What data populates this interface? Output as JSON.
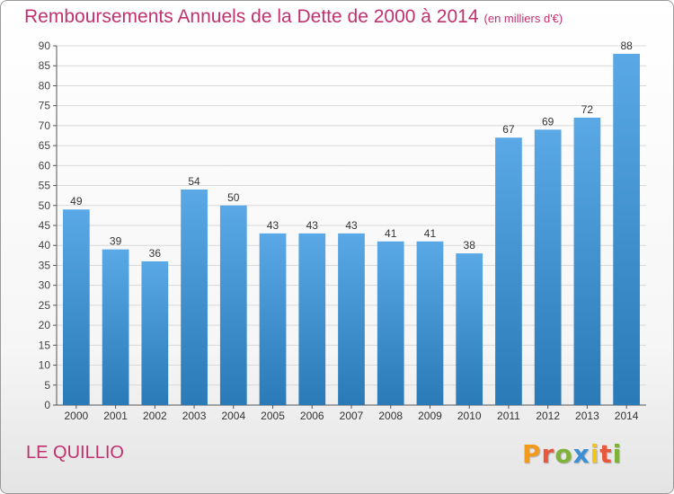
{
  "title": {
    "main": "Remboursements Annuels de la Dette de 2000 à 2014",
    "unit": "(en milliers d'€)"
  },
  "footer": {
    "city": "LE QUILLIO",
    "brand": "Proxiti"
  },
  "colors": {
    "title": "#c0316f",
    "bar_top": "#5aa8e6",
    "bar_bottom": "#2a7ab8",
    "logo_letters": [
      "#f29a1e",
      "#e8563c",
      "#7fb239",
      "#3a8fd6",
      "#f2c41e",
      "#e8563c",
      "#7fb239"
    ]
  },
  "chart_data": {
    "type": "bar",
    "categories": [
      "2000",
      "2001",
      "2002",
      "2003",
      "2004",
      "2005",
      "2006",
      "2007",
      "2008",
      "2009",
      "2010",
      "2011",
      "2012",
      "2013",
      "2014"
    ],
    "values": [
      49,
      39,
      36,
      54,
      50,
      43,
      43,
      43,
      41,
      41,
      38,
      67,
      69,
      72,
      88
    ],
    "title": "Remboursements Annuels de la Dette de 2000 à 2014",
    "ylim": [
      0,
      90
    ],
    "yticks": [
      0,
      5,
      10,
      15,
      20,
      25,
      30,
      35,
      40,
      45,
      50,
      55,
      60,
      65,
      70,
      75,
      80,
      85,
      90
    ],
    "grid": true,
    "data_labels": true
  }
}
